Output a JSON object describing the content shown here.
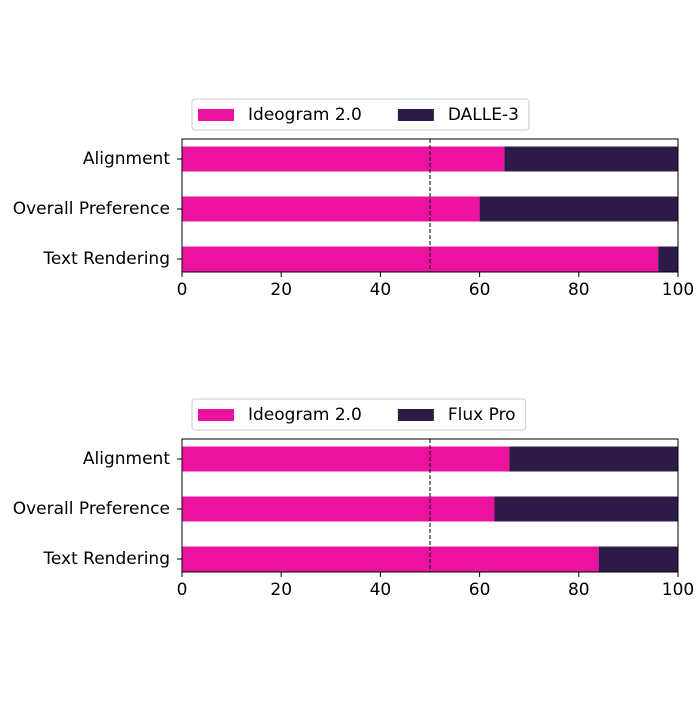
{
  "chart_data": [
    {
      "type": "stacked-barh",
      "categories": [
        "Alignment",
        "Overall Preference",
        "Text Rendering"
      ],
      "series": [
        {
          "name": "Ideogram 2.0",
          "color": "#ec12a0",
          "values": [
            65,
            60,
            96
          ]
        },
        {
          "name": "DALLE-3",
          "color": "#2e1a47",
          "values": [
            35,
            40,
            4
          ]
        }
      ],
      "xlim": [
        0,
        100
      ],
      "xticks": [
        0,
        20,
        40,
        60,
        80,
        100
      ],
      "reference_line": 50,
      "legend": "upper left"
    },
    {
      "type": "stacked-barh",
      "categories": [
        "Alignment",
        "Overall Preference",
        "Text Rendering"
      ],
      "series": [
        {
          "name": "Ideogram 2.0",
          "color": "#ec12a0",
          "values": [
            66,
            63,
            84
          ]
        },
        {
          "name": "Flux Pro",
          "color": "#2e1a47",
          "values": [
            34,
            37,
            16
          ]
        }
      ],
      "xlim": [
        0,
        100
      ],
      "xticks": [
        0,
        20,
        40,
        60,
        80,
        100
      ],
      "reference_line": 50,
      "legend": "upper left"
    }
  ]
}
